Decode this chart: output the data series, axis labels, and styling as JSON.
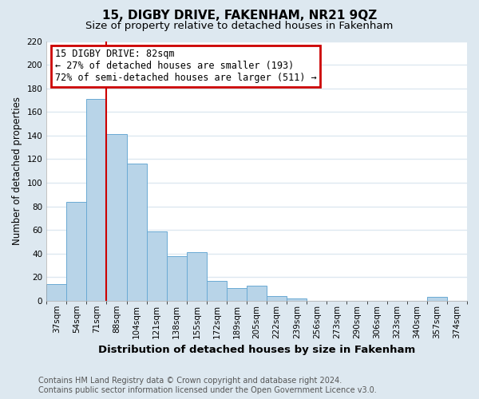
{
  "title": "15, DIGBY DRIVE, FAKENHAM, NR21 9QZ",
  "subtitle": "Size of property relative to detached houses in Fakenham",
  "xlabel": "Distribution of detached houses by size in Fakenham",
  "ylabel": "Number of detached properties",
  "bin_labels": [
    "37sqm",
    "54sqm",
    "71sqm",
    "88sqm",
    "104sqm",
    "121sqm",
    "138sqm",
    "155sqm",
    "172sqm",
    "189sqm",
    "205sqm",
    "222sqm",
    "239sqm",
    "256sqm",
    "273sqm",
    "290sqm",
    "306sqm",
    "323sqm",
    "340sqm",
    "357sqm",
    "374sqm"
  ],
  "bar_heights": [
    14,
    84,
    171,
    141,
    116,
    59,
    38,
    41,
    17,
    11,
    13,
    4,
    2,
    0,
    0,
    0,
    0,
    0,
    0,
    3,
    0
  ],
  "bar_color": "#b8d4e8",
  "bar_edge_color": "#6aaad4",
  "background_color": "#dde8f0",
  "plot_bg_color": "#ffffff",
  "grid_color": "#dde8f0",
  "vline_x": 3,
  "vline_color": "#cc0000",
  "annotation_title": "15 DIGBY DRIVE: 82sqm",
  "annotation_line1": "← 27% of detached houses are smaller (193)",
  "annotation_line2": "72% of semi-detached houses are larger (511) →",
  "annotation_box_color": "#cc0000",
  "ylim": [
    0,
    220
  ],
  "yticks": [
    0,
    20,
    40,
    60,
    80,
    100,
    120,
    140,
    160,
    180,
    200,
    220
  ],
  "footer1": "Contains HM Land Registry data © Crown copyright and database right 2024.",
  "footer2": "Contains public sector information licensed under the Open Government Licence v3.0.",
  "title_fontsize": 11,
  "subtitle_fontsize": 9.5,
  "xlabel_fontsize": 9.5,
  "ylabel_fontsize": 8.5,
  "tick_fontsize": 7.5,
  "annotation_fontsize": 8.5,
  "footer_fontsize": 7
}
